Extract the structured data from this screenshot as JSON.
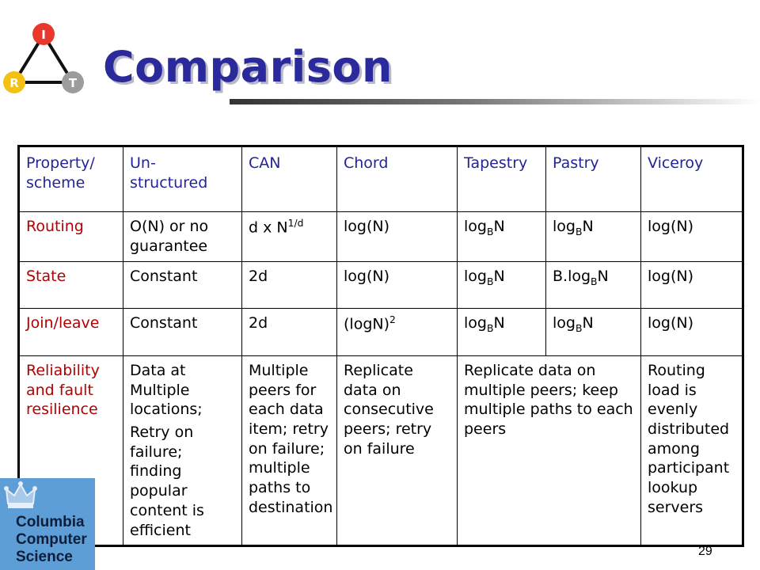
{
  "slide": {
    "title": "Comparison",
    "page_number": "29"
  },
  "logo": {
    "nodes": [
      {
        "label": "I",
        "color": "#e8382b"
      },
      {
        "label": "R",
        "color": "#f3c114"
      },
      {
        "label": "T",
        "color": "#9c9c9c"
      }
    ]
  },
  "table": {
    "headers": [
      "Property/ scheme",
      "Un- structured",
      "CAN",
      "Chord",
      "Tapestry",
      "Pastry",
      "Viceroy"
    ],
    "rows": {
      "routing": {
        "label": "Routing",
        "unstructured": "O(N) or no guarantee",
        "can_base": "d x N",
        "can_exp": "1/d",
        "chord": "log(N)",
        "tapestry_base": "log",
        "tapestry_sub": "B",
        "tapestry_after": "N",
        "pastry_base": "log",
        "pastry_sub": "B",
        "pastry_after": "N",
        "viceroy": "log(N)"
      },
      "state": {
        "label": "State",
        "unstructured": "Constant",
        "can": "2d",
        "chord": "log(N)",
        "tapestry_base": "log",
        "tapestry_sub": "B",
        "tapestry_after": "N",
        "pastry_base": "B.log",
        "pastry_sub": "B",
        "pastry_after": "N",
        "viceroy": "log(N)"
      },
      "join_leave": {
        "label": "Join/leave",
        "unstructured": "Constant",
        "can": "2d",
        "chord_base": "(logN)",
        "chord_exp": "2",
        "tapestry_base": "log",
        "tapestry_sub": "B",
        "tapestry_after": "N",
        "pastry_base": "log",
        "pastry_sub": "B",
        "pastry_after": "N",
        "viceroy": "log(N)"
      },
      "reliability": {
        "label": "Reliability and fault resilience",
        "unstructured_1": "Data at Multiple locations;",
        "unstructured_2": "Retry on failure; finding popular content is efficient",
        "can": "Multiple peers for each data item; retry on failure; multiple paths to destination",
        "chord": "Replicate data on consecutive peers; retry on failure",
        "tapestry_pastry": "Replicate data on multiple peers; keep multiple paths to each peers",
        "viceroy": "Routing load is evenly distributed among participant lookup servers"
      }
    }
  },
  "badge": {
    "line1": "Columbia",
    "line2": "Computer",
    "line3": "Science",
    "background": "#5d9ed6"
  },
  "colors": {
    "title": "#2a2a9c",
    "header_text": "#23239a",
    "row_header_text": "#b30000"
  }
}
